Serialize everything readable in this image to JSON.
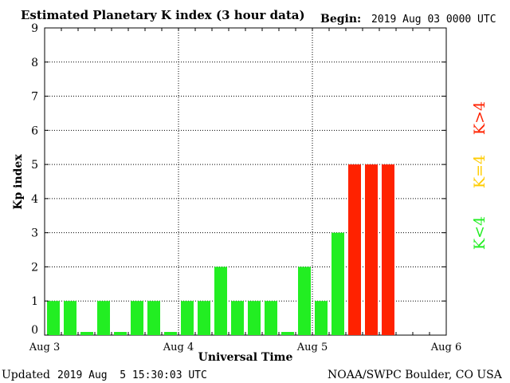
{
  "header": {
    "title": "Estimated Planetary K index (3 hour data)",
    "begin_label": "Begin:",
    "begin_value": "2019 Aug 03 0000 UTC"
  },
  "footer": {
    "updated_label": "Updated",
    "updated_value": "2019 Aug  5 15:30:03 UTC",
    "source": "NOAA/SWPC Boulder, CO USA"
  },
  "legend": {
    "low": "K<4",
    "mid": "K=4",
    "high": "K>4"
  },
  "colors": {
    "low": "#22ee22",
    "mid": "#ffcc00",
    "high": "#ff2200",
    "grid": "#000000"
  },
  "chart_data": {
    "type": "bar",
    "title": "Estimated Planetary K index (3 hour data)",
    "xlabel": "Universal Time",
    "ylabel": "Kp index",
    "ylim": [
      0,
      9
    ],
    "yticks": [
      0,
      1,
      2,
      3,
      4,
      5,
      6,
      7,
      8,
      9
    ],
    "xticks": [
      "Aug 3",
      "Aug 4",
      "Aug 5",
      "Aug 6"
    ],
    "slots_per_day": 8,
    "days": 3,
    "grid": "dotted",
    "values": [
      1,
      1,
      0,
      1,
      0,
      1,
      1,
      0,
      1,
      1,
      2,
      1,
      1,
      1,
      0,
      2,
      1,
      3,
      5,
      5,
      5
    ]
  }
}
